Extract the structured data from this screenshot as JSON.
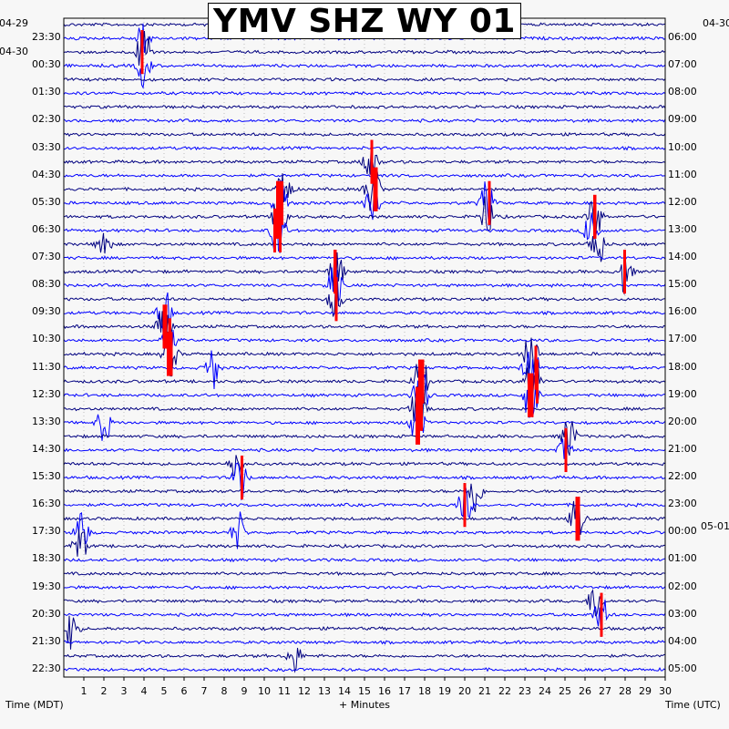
{
  "chart_data": {
    "type": "line",
    "title": "YMV SHZ WY 01",
    "xlabel": "+ Minutes",
    "ylabel_left": "Time (MDT)",
    "ylabel_right": "Time (UTC)",
    "x_ticks": [
      "1",
      "2",
      "3",
      "4",
      "5",
      "6",
      "7",
      "8",
      "9",
      "10",
      "11",
      "12",
      "13",
      "14",
      "15",
      "16",
      "17",
      "18",
      "19",
      "20",
      "21",
      "22",
      "23",
      "24",
      "25",
      "26",
      "27",
      "28",
      "29",
      "30"
    ],
    "xlim": [
      0,
      30
    ],
    "grid": true,
    "trace_colors": [
      "#000080",
      "#0000ff"
    ],
    "clip_color": "#ff0000",
    "left_dates": [
      "04-29",
      "04-30"
    ],
    "right_dates": [
      "04-30",
      "05-01"
    ],
    "left_times": [
      "23:30",
      "00:30",
      "01:30",
      "02:30",
      "03:30",
      "04:30",
      "05:30",
      "06:30",
      "07:30",
      "08:30",
      "09:30",
      "10:30",
      "11:30",
      "12:30",
      "13:30",
      "14:30",
      "15:30",
      "16:30",
      "17:30",
      "18:30",
      "19:30",
      "20:30",
      "21:30",
      "22:30"
    ],
    "right_times": [
      "06:00",
      "07:00",
      "08:00",
      "09:00",
      "10:00",
      "11:00",
      "12:00",
      "13:00",
      "14:00",
      "15:00",
      "16:00",
      "17:00",
      "18:00",
      "19:00",
      "20:00",
      "21:00",
      "22:00",
      "23:00",
      "00:00",
      "01:00",
      "02:00",
      "03:00",
      "04:00",
      "05:00"
    ],
    "events": [
      {
        "row": 1,
        "minute": 4.0,
        "amp": 1.6
      },
      {
        "row": 2,
        "minute": 4.0,
        "amp": 2.5
      },
      {
        "row": 3,
        "minute": 4.0,
        "amp": 1.5
      },
      {
        "row": 10,
        "minute": 15.3,
        "amp": 2.0
      },
      {
        "row": 12,
        "minute": 15.4,
        "amp": 3.0
      },
      {
        "row": 13,
        "minute": 15.4,
        "amp": 2.0
      },
      {
        "row": 12,
        "minute": 11.0,
        "amp": 2.0
      },
      {
        "row": 13,
        "minute": 10.8,
        "amp": 3.0
      },
      {
        "row": 14,
        "minute": 10.8,
        "amp": 2.5
      },
      {
        "row": 15,
        "minute": 10.7,
        "amp": 2.5
      },
      {
        "row": 18,
        "minute": 13.6,
        "amp": 2.0
      },
      {
        "row": 19,
        "minute": 13.5,
        "amp": 2.0
      },
      {
        "row": 20,
        "minute": 13.5,
        "amp": 2.0
      },
      {
        "row": 21,
        "minute": 5.0,
        "amp": 2.0
      },
      {
        "row": 22,
        "minute": 5.0,
        "amp": 2.5
      },
      {
        "row": 23,
        "minute": 5.2,
        "amp": 2.5
      },
      {
        "row": 24,
        "minute": 5.3,
        "amp": 2.0
      },
      {
        "row": 26,
        "minute": 17.8,
        "amp": 2.5
      },
      {
        "row": 27,
        "minute": 17.8,
        "amp": 3.0
      },
      {
        "row": 28,
        "minute": 17.7,
        "amp": 3.0
      },
      {
        "row": 29,
        "minute": 17.6,
        "amp": 2.5
      },
      {
        "row": 24,
        "minute": 23.3,
        "amp": 2.0
      },
      {
        "row": 25,
        "minute": 23.3,
        "amp": 3.0
      },
      {
        "row": 26,
        "minute": 23.4,
        "amp": 3.0
      },
      {
        "row": 27,
        "minute": 23.3,
        "amp": 2.5
      },
      {
        "row": 14,
        "minute": 26.5,
        "amp": 2.0
      },
      {
        "row": 15,
        "minute": 26.3,
        "amp": 2.0
      },
      {
        "row": 16,
        "minute": 26.6,
        "amp": 2.0
      },
      {
        "row": 13,
        "minute": 21.1,
        "amp": 1.8
      },
      {
        "row": 14,
        "minute": 21.1,
        "amp": 1.6
      },
      {
        "row": 18,
        "minute": 28.0,
        "amp": 1.6
      },
      {
        "row": 30,
        "minute": 25.2,
        "amp": 1.8
      },
      {
        "row": 31,
        "minute": 25.0,
        "amp": 1.6
      },
      {
        "row": 34,
        "minute": 20.5,
        "amp": 1.8
      },
      {
        "row": 35,
        "minute": 20.0,
        "amp": 1.6
      },
      {
        "row": 36,
        "minute": 25.6,
        "amp": 1.8
      },
      {
        "row": 32,
        "minute": 8.6,
        "amp": 1.6
      },
      {
        "row": 33,
        "minute": 8.8,
        "amp": 1.8
      },
      {
        "row": 37,
        "minute": 8.7,
        "amp": 1.5
      },
      {
        "row": 37,
        "minute": 0.9,
        "amp": 1.8
      },
      {
        "row": 38,
        "minute": 0.8,
        "amp": 1.6
      },
      {
        "row": 42,
        "minute": 26.5,
        "amp": 1.5
      },
      {
        "row": 43,
        "minute": 26.8,
        "amp": 1.6
      },
      {
        "row": 44,
        "minute": 0.4,
        "amp": 1.6
      },
      {
        "row": 46,
        "minute": 11.5,
        "amp": 1.2
      },
      {
        "row": 25,
        "minute": 7.4,
        "amp": 1.6
      },
      {
        "row": 29,
        "minute": 2.0,
        "amp": 1.5
      },
      {
        "row": 16,
        "minute": 2.0,
        "amp": 1.3
      }
    ]
  }
}
